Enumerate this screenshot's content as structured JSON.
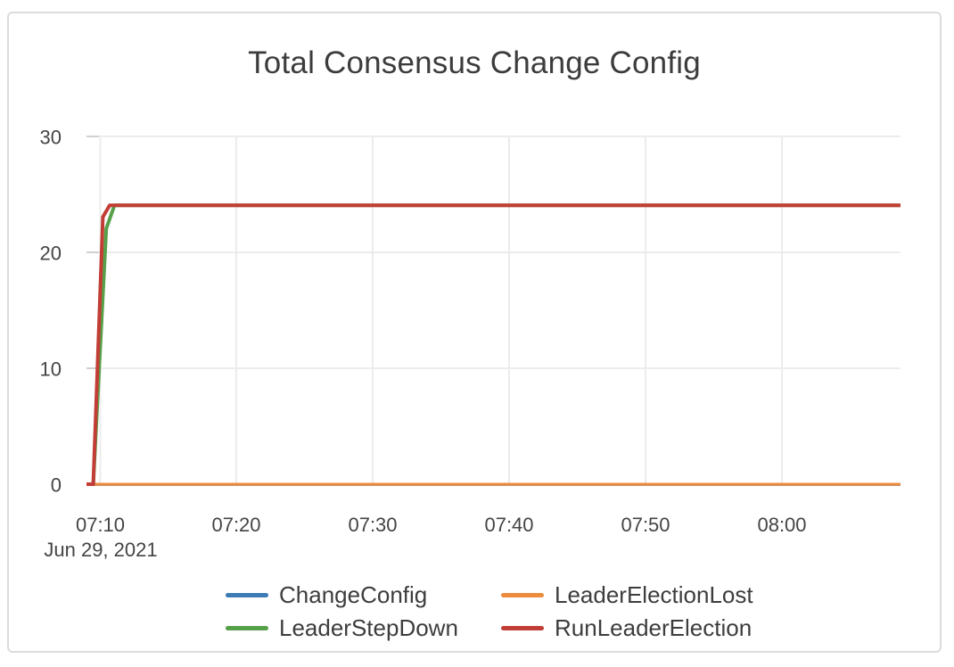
{
  "chart_data": {
    "type": "line",
    "title": "Total Consensus Change Config",
    "x_axis": {
      "date_label": "Jun 29, 2021",
      "tick_labels": [
        "07:10",
        "07:20",
        "07:30",
        "07:40",
        "07:50",
        "08:00"
      ],
      "tick_minutes_after_0700": [
        10,
        20,
        30,
        40,
        50,
        60
      ],
      "range_minutes_after_0700": [
        9.0,
        68.7
      ],
      "unit": "time of day (HH:MM), Jun 29, 2021"
    },
    "y_axis": {
      "tick_labels": [
        "0",
        "10",
        "20",
        "30"
      ],
      "tick_values": [
        0,
        10,
        20,
        30
      ],
      "range": [
        0,
        30
      ]
    },
    "grid": true,
    "legend_position": "bottom",
    "series": [
      {
        "name": "ChangeConfig",
        "color": "#3d7bb4",
        "stroke_width": 3,
        "steady_value": 0,
        "points_min_val": [
          [
            9.0,
            0
          ],
          [
            68.7,
            0
          ]
        ]
      },
      {
        "name": "LeaderElectionLost",
        "color": "#ed8b3c",
        "stroke_width": 3,
        "steady_value": 0,
        "points_min_val": [
          [
            9.0,
            0
          ],
          [
            68.7,
            0
          ]
        ]
      },
      {
        "name": "LeaderStepDown",
        "color": "#56a049",
        "stroke_width": 4,
        "steady_value": 24,
        "points_min_val": [
          [
            9.0,
            0
          ],
          [
            9.5,
            0
          ],
          [
            10.45,
            22
          ],
          [
            11.05,
            24
          ],
          [
            68.7,
            24
          ]
        ]
      },
      {
        "name": "RunLeaderElection",
        "color": "#c13d35",
        "stroke_width": 4,
        "steady_value": 24,
        "points_min_val": [
          [
            9.0,
            0
          ],
          [
            9.5,
            0
          ],
          [
            10.2,
            23
          ],
          [
            10.7,
            24
          ],
          [
            68.7,
            24
          ]
        ]
      }
    ],
    "colors": {
      "grid_line": "#ececec",
      "tick_dash": "#d0d0d0",
      "axis_baseline": "#3f3f3f",
      "text": "#444444",
      "title_text": "#3c3c3c",
      "card_border": "#dcdcdc"
    }
  }
}
